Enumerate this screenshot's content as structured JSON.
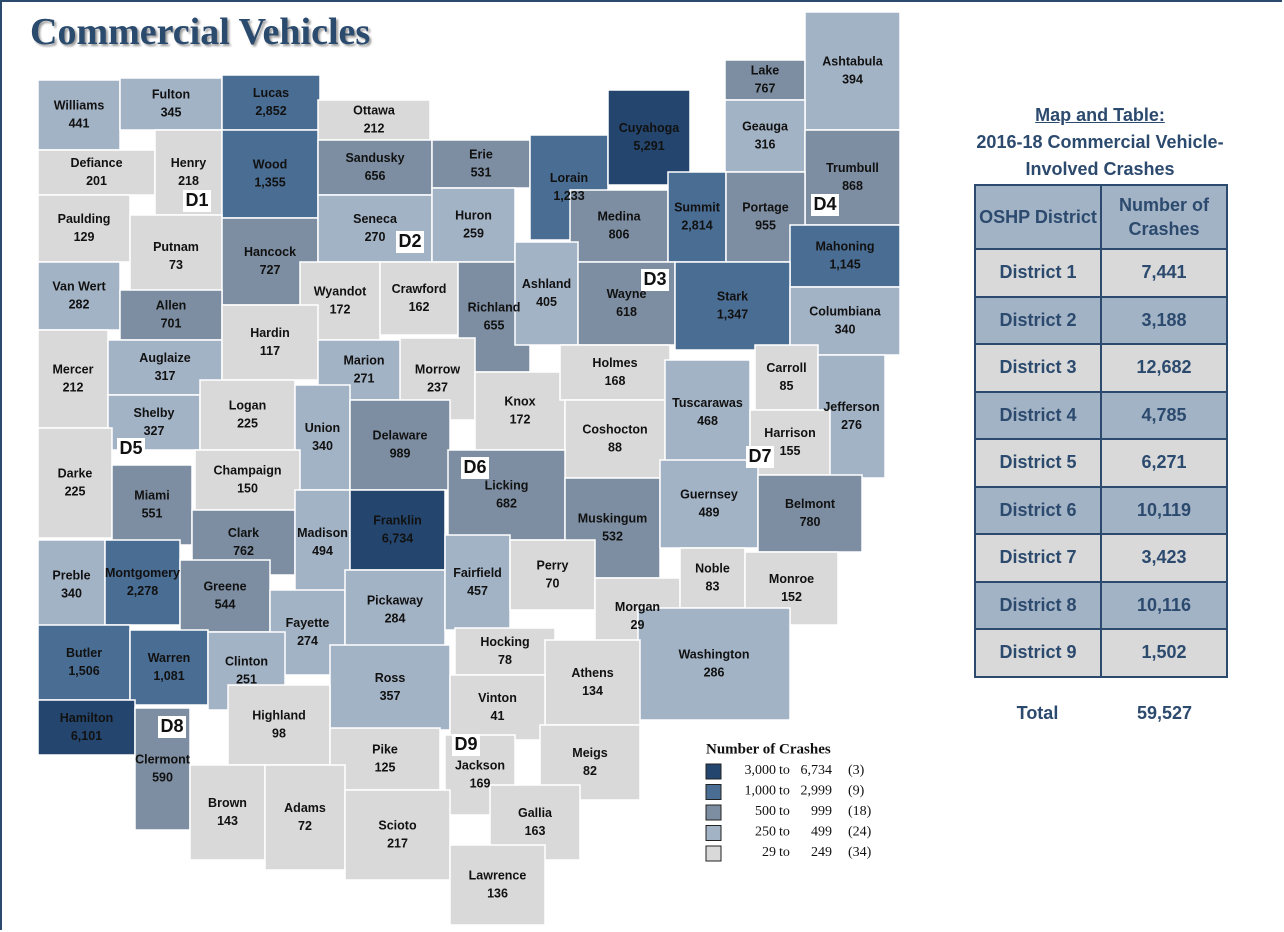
{
  "title": "Commercial Vehicles",
  "map": {
    "counties": [
      {
        "name": "Williams",
        "value": "441"
      },
      {
        "name": "Fulton",
        "value": "345"
      },
      {
        "name": "Lucas",
        "value": "2,852"
      },
      {
        "name": "Ottawa",
        "value": "212"
      },
      {
        "name": "Defiance",
        "value": "201"
      },
      {
        "name": "Henry",
        "value": "218"
      },
      {
        "name": "Wood",
        "value": "1,355"
      },
      {
        "name": "Sandusky",
        "value": "656"
      },
      {
        "name": "Erie",
        "value": "531"
      },
      {
        "name": "Lorain",
        "value": "1,233"
      },
      {
        "name": "Cuyahoga",
        "value": "5,291"
      },
      {
        "name": "Lake",
        "value": "767"
      },
      {
        "name": "Ashtabula",
        "value": "394"
      },
      {
        "name": "Geauga",
        "value": "316"
      },
      {
        "name": "Trumbull",
        "value": "868"
      },
      {
        "name": "Paulding",
        "value": "129"
      },
      {
        "name": "Putnam",
        "value": "73"
      },
      {
        "name": "Hancock",
        "value": "727"
      },
      {
        "name": "Seneca",
        "value": "270"
      },
      {
        "name": "Huron",
        "value": "259"
      },
      {
        "name": "Medina",
        "value": "806"
      },
      {
        "name": "Summit",
        "value": "2,814"
      },
      {
        "name": "Portage",
        "value": "955"
      },
      {
        "name": "Mahoning",
        "value": "1,145"
      },
      {
        "name": "Van Wert",
        "value": "282"
      },
      {
        "name": "Allen",
        "value": "701"
      },
      {
        "name": "Wyandot",
        "value": "172"
      },
      {
        "name": "Crawford",
        "value": "162"
      },
      {
        "name": "Richland",
        "value": "655"
      },
      {
        "name": "Ashland",
        "value": "405"
      },
      {
        "name": "Wayne",
        "value": "618"
      },
      {
        "name": "Stark",
        "value": "1,347"
      },
      {
        "name": "Columbiana",
        "value": "340"
      },
      {
        "name": "Mercer",
        "value": "212"
      },
      {
        "name": "Auglaize",
        "value": "317"
      },
      {
        "name": "Hardin",
        "value": "117"
      },
      {
        "name": "Marion",
        "value": "271"
      },
      {
        "name": "Morrow",
        "value": "237"
      },
      {
        "name": "Knox",
        "value": "172"
      },
      {
        "name": "Holmes",
        "value": "168"
      },
      {
        "name": "Carroll",
        "value": "85"
      },
      {
        "name": "Jefferson",
        "value": "276"
      },
      {
        "name": "Shelby",
        "value": "327"
      },
      {
        "name": "Logan",
        "value": "225"
      },
      {
        "name": "Union",
        "value": "340"
      },
      {
        "name": "Delaware",
        "value": "989"
      },
      {
        "name": "Coshocton",
        "value": "88"
      },
      {
        "name": "Tuscarawas",
        "value": "468"
      },
      {
        "name": "Harrison",
        "value": "155"
      },
      {
        "name": "Darke",
        "value": "225"
      },
      {
        "name": "Champaign",
        "value": "150"
      },
      {
        "name": "Miami",
        "value": "551"
      },
      {
        "name": "Clark",
        "value": "762"
      },
      {
        "name": "Madison",
        "value": "494"
      },
      {
        "name": "Franklin",
        "value": "6,734"
      },
      {
        "name": "Licking",
        "value": "682"
      },
      {
        "name": "Muskingum",
        "value": "532"
      },
      {
        "name": "Guernsey",
        "value": "489"
      },
      {
        "name": "Belmont",
        "value": "780"
      },
      {
        "name": "Preble",
        "value": "340"
      },
      {
        "name": "Montgomery",
        "value": "2,278"
      },
      {
        "name": "Greene",
        "value": "544"
      },
      {
        "name": "Fayette",
        "value": "274"
      },
      {
        "name": "Pickaway",
        "value": "284"
      },
      {
        "name": "Fairfield",
        "value": "457"
      },
      {
        "name": "Perry",
        "value": "70"
      },
      {
        "name": "Morgan",
        "value": "29"
      },
      {
        "name": "Noble",
        "value": "83"
      },
      {
        "name": "Monroe",
        "value": "152"
      },
      {
        "name": "Washington",
        "value": "286"
      },
      {
        "name": "Butler",
        "value": "1,506"
      },
      {
        "name": "Warren",
        "value": "1,081"
      },
      {
        "name": "Clinton",
        "value": "251"
      },
      {
        "name": "Ross",
        "value": "357"
      },
      {
        "name": "Hocking",
        "value": "78"
      },
      {
        "name": "Athens",
        "value": "134"
      },
      {
        "name": "Vinton",
        "value": "41"
      },
      {
        "name": "Hamilton",
        "value": "6,101"
      },
      {
        "name": "Clermont",
        "value": "590"
      },
      {
        "name": "Highland",
        "value": "98"
      },
      {
        "name": "Meigs",
        "value": "82"
      },
      {
        "name": "Pike",
        "value": "125"
      },
      {
        "name": "Jackson",
        "value": "169"
      },
      {
        "name": "Brown",
        "value": "143"
      },
      {
        "name": "Adams",
        "value": "72"
      },
      {
        "name": "Scioto",
        "value": "217"
      },
      {
        "name": "Gallia",
        "value": "163"
      },
      {
        "name": "Lawrence",
        "value": "136"
      }
    ],
    "districts": [
      "D1",
      "D2",
      "D3",
      "D4",
      "D5",
      "D6",
      "D7",
      "D8",
      "D9"
    ],
    "legend": {
      "title": "Number of Crashes",
      "rows": [
        {
          "from": "3,000",
          "word": "to",
          "to": "6,734",
          "count": "(3)",
          "color": "#24466e"
        },
        {
          "from": "1,000",
          "word": "to",
          "to": "2,999",
          "count": "(9)",
          "color": "#4a6d94"
        },
        {
          "from": "500",
          "word": "to",
          "to": "999",
          "count": "(18)",
          "color": "#7d8ea2"
        },
        {
          "from": "250",
          "word": "to",
          "to": "499",
          "count": "(24)",
          "color": "#a3b3c6"
        },
        {
          "from": "29",
          "word": "to",
          "to": "249",
          "count": "(34)",
          "color": "#d9d9d9"
        }
      ]
    }
  },
  "table": {
    "heading": [
      "Map and Table:",
      "2016-18 Commercial Vehicle-",
      "Involved Crashes"
    ],
    "columns": [
      "OSHP District",
      "Number of Crashes"
    ],
    "rows": [
      [
        "District 1",
        "7,441"
      ],
      [
        "District 2",
        "3,188"
      ],
      [
        "District 3",
        "12,682"
      ],
      [
        "District 4",
        "4,785"
      ],
      [
        "District 5",
        "6,271"
      ],
      [
        "District 6",
        "10,119"
      ],
      [
        "District 7",
        "3,423"
      ],
      [
        "District 8",
        "10,116"
      ],
      [
        "District 9",
        "1,502"
      ]
    ],
    "total": [
      "Total",
      "59,527"
    ]
  }
}
